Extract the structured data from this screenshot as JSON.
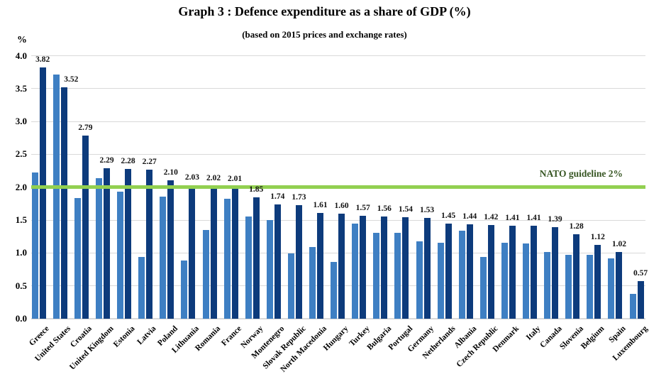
{
  "header": {
    "title": "Graph 3 : Defence expenditure as a share of GDP (%)",
    "subtitle": "(based on 2015 prices and exchange rates)"
  },
  "chart_data": {
    "type": "bar",
    "title": "Graph 3 : Defence expenditure as a share of GDP (%)",
    "subtitle": "(based on 2015 prices and exchange rates)",
    "categories": [
      "Greece",
      "United States",
      "Croatia",
      "United Kingdom",
      "Estonia",
      "Latvia",
      "Poland",
      "Lithuania",
      "Romania",
      "France",
      "Norway",
      "Montenegro",
      "Slovak Republic",
      "North Macedonia",
      "Hungary",
      "Turkey",
      "Bulgaria",
      "Portugal",
      "Germany",
      "Netherlands",
      "Albania",
      "Czech Republic",
      "Denmark",
      "Italy",
      "Canada",
      "Slovenia",
      "Belgium",
      "Spain",
      "Luxembourg"
    ],
    "series": [
      {
        "name": "light blue bars (unlabeled, values estimated from gridlines)",
        "color": "#3E7FC3",
        "values": [
          2.22,
          3.71,
          1.84,
          2.14,
          1.93,
          0.94,
          1.86,
          0.88,
          1.35,
          1.82,
          1.55,
          1.5,
          0.99,
          1.09,
          0.86,
          1.45,
          1.31,
          1.31,
          1.18,
          1.15,
          1.34,
          0.94,
          1.15,
          1.14,
          1.01,
          0.97,
          0.97,
          0.92,
          0.38
        ]
      },
      {
        "name": "dark blue bars (with data labels)",
        "color": "#0D3B7C",
        "values": [
          "3.82",
          "3.52",
          "2.79",
          "2.29",
          "2.28",
          "2.27",
          "2.10",
          "2.03",
          "2.02",
          "2.01",
          "1.85",
          "1.74",
          "1.73",
          "1.61",
          "1.60",
          "1.57",
          "1.56",
          "1.54",
          "1.53",
          "1.45",
          "1.44",
          "1.42",
          "1.41",
          "1.41",
          "1.39",
          "1.28",
          "1.12",
          "1.02",
          "0.57"
        ],
        "data_labels": true
      }
    ],
    "y_axis": {
      "unit_label": "%",
      "min": 0,
      "max": 4,
      "step": 0.5,
      "tick_labels": [
        "4.0",
        "3.5",
        "3.0",
        "2.5",
        "2.0",
        "1.5",
        "1.0",
        "0.5",
        "0.0"
      ],
      "grid": true,
      "gridline_color": "#D9D9D9"
    },
    "x_axis": {
      "label_rotation_deg": -45
    },
    "guideline": {
      "label": "NATO guideline 2%",
      "value": 2,
      "line_color": "#92D050",
      "label_color": "#375623"
    },
    "legend": "none",
    "background_color": "#ffffff"
  }
}
